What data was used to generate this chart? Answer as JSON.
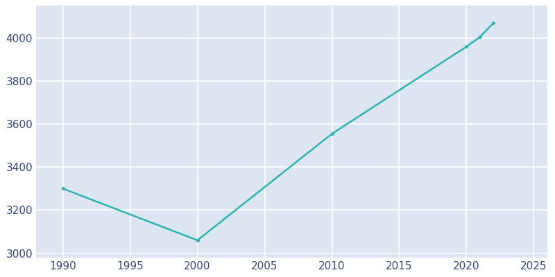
{
  "years": [
    1990,
    2000,
    2010,
    2020,
    2021,
    2022
  ],
  "population": [
    3300,
    3060,
    3555,
    3960,
    4005,
    4070
  ],
  "line_color": "#2ab5b5",
  "plot_bg_color": "#dde6f0",
  "fig_bg_color": "#ffffff",
  "grid_color": "#c8d4e3",
  "xlim": [
    1988,
    2026
  ],
  "ylim": [
    2980,
    4150
  ],
  "xticks": [
    1990,
    1995,
    2000,
    2005,
    2010,
    2015,
    2020,
    2025
  ],
  "yticks": [
    3000,
    3200,
    3400,
    3600,
    3800,
    4000
  ],
  "tick_color": "#34497a",
  "linewidth": 1.8,
  "markersize": 2.5
}
